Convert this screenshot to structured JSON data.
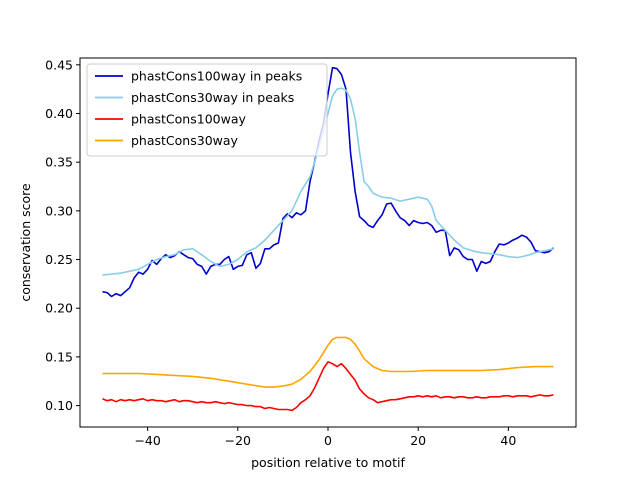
{
  "chart_data": {
    "type": "line",
    "title": "",
    "xlabel": "position relative to motif",
    "ylabel": "conservation score",
    "xlim": [
      -55,
      55
    ],
    "ylim": [
      0.078,
      0.457
    ],
    "xticks": [
      -40,
      -20,
      0,
      20,
      40
    ],
    "xtick_labels": [
      "−40",
      "−20",
      "0",
      "20",
      "40"
    ],
    "yticks": [
      0.1,
      0.15,
      0.2,
      0.25,
      0.3,
      0.35,
      0.4,
      0.45
    ],
    "ytick_labels": [
      "0.10",
      "0.15",
      "0.20",
      "0.25",
      "0.30",
      "0.35",
      "0.40",
      "0.45"
    ],
    "grid": false,
    "legend_position": "top-left",
    "series": [
      {
        "name": "phastCons100way in peaks",
        "color": "#0000cd",
        "x": [
          -50,
          -49,
          -48,
          -47,
          -46,
          -45,
          -44,
          -43,
          -42,
          -41,
          -40,
          -39,
          -38,
          -37,
          -36,
          -35,
          -34,
          -33,
          -32,
          -31,
          -30,
          -29,
          -28,
          -27,
          -26,
          -25,
          -24,
          -23,
          -22,
          -21,
          -20,
          -19,
          -18,
          -17,
          -16,
          -15,
          -14,
          -13,
          -12,
          -11,
          -10,
          -9,
          -8,
          -7,
          -6,
          -5,
          -4,
          -3,
          -2,
          -1,
          0,
          1,
          2,
          3,
          4,
          5,
          6,
          7,
          8,
          9,
          10,
          11,
          12,
          13,
          14,
          15,
          16,
          17,
          18,
          19,
          20,
          21,
          22,
          23,
          24,
          25,
          26,
          27,
          28,
          29,
          30,
          31,
          32,
          33,
          34,
          35,
          36,
          37,
          38,
          39,
          40,
          41,
          42,
          43,
          44,
          45,
          46,
          47,
          48,
          49,
          50
        ],
        "values": [
          0.217,
          0.216,
          0.212,
          0.215,
          0.213,
          0.217,
          0.221,
          0.231,
          0.237,
          0.235,
          0.24,
          0.249,
          0.245,
          0.251,
          0.255,
          0.252,
          0.254,
          0.258,
          0.255,
          0.252,
          0.251,
          0.245,
          0.243,
          0.235,
          0.243,
          0.245,
          0.245,
          0.25,
          0.253,
          0.24,
          0.243,
          0.244,
          0.255,
          0.257,
          0.241,
          0.246,
          0.261,
          0.261,
          0.265,
          0.267,
          0.292,
          0.297,
          0.293,
          0.298,
          0.296,
          0.3,
          0.33,
          0.35,
          0.372,
          0.39,
          0.42,
          0.447,
          0.446,
          0.44,
          0.425,
          0.36,
          0.32,
          0.294,
          0.29,
          0.285,
          0.283,
          0.29,
          0.296,
          0.307,
          0.308,
          0.3,
          0.293,
          0.29,
          0.285,
          0.29,
          0.288,
          0.287,
          0.288,
          0.285,
          0.278,
          0.28,
          0.28,
          0.254,
          0.262,
          0.26,
          0.253,
          0.25,
          0.25,
          0.238,
          0.248,
          0.246,
          0.248,
          0.258,
          0.266,
          0.265,
          0.267,
          0.27,
          0.272,
          0.275,
          0.273,
          0.268,
          0.259,
          0.258,
          0.257,
          0.258,
          0.262
        ]
      },
      {
        "name": "phastCons30way in peaks",
        "color": "#87ceeb",
        "x": [
          -50,
          -48,
          -46,
          -44,
          -42,
          -40,
          -38,
          -36,
          -34,
          -32,
          -30,
          -28,
          -26,
          -24,
          -22,
          -20,
          -18,
          -16,
          -14,
          -12,
          -10,
          -8,
          -6,
          -4,
          -2,
          0,
          1,
          2,
          3,
          4,
          5,
          6,
          7,
          8,
          9,
          10,
          12,
          14,
          16,
          18,
          20,
          22,
          23,
          24,
          26,
          28,
          30,
          32,
          34,
          36,
          38,
          40,
          42,
          44,
          46,
          48,
          50
        ],
        "values": [
          0.234,
          0.235,
          0.236,
          0.238,
          0.24,
          0.245,
          0.25,
          0.253,
          0.255,
          0.26,
          0.261,
          0.255,
          0.248,
          0.243,
          0.245,
          0.25,
          0.258,
          0.262,
          0.27,
          0.28,
          0.29,
          0.3,
          0.32,
          0.335,
          0.365,
          0.4,
          0.418,
          0.425,
          0.426,
          0.424,
          0.415,
          0.395,
          0.36,
          0.33,
          0.325,
          0.318,
          0.314,
          0.313,
          0.31,
          0.312,
          0.314,
          0.312,
          0.305,
          0.29,
          0.28,
          0.27,
          0.262,
          0.259,
          0.257,
          0.256,
          0.255,
          0.253,
          0.252,
          0.254,
          0.257,
          0.259,
          0.261
        ]
      },
      {
        "name": "phastCons100way",
        "color": "#ff0000",
        "x": [
          -50,
          -49,
          -48,
          -47,
          -46,
          -45,
          -44,
          -43,
          -42,
          -41,
          -40,
          -39,
          -38,
          -37,
          -36,
          -35,
          -34,
          -33,
          -32,
          -31,
          -30,
          -29,
          -28,
          -27,
          -26,
          -25,
          -24,
          -23,
          -22,
          -21,
          -20,
          -19,
          -18,
          -17,
          -16,
          -15,
          -14,
          -13,
          -12,
          -11,
          -10,
          -9,
          -8,
          -7,
          -6,
          -5,
          -4,
          -3,
          -2,
          -1,
          0,
          1,
          2,
          3,
          4,
          5,
          6,
          7,
          8,
          9,
          10,
          11,
          12,
          13,
          14,
          15,
          16,
          17,
          18,
          19,
          20,
          21,
          22,
          23,
          24,
          25,
          26,
          27,
          28,
          29,
          30,
          31,
          32,
          33,
          34,
          35,
          36,
          37,
          38,
          39,
          40,
          41,
          42,
          43,
          44,
          45,
          46,
          47,
          48,
          49,
          50
        ],
        "values": [
          0.107,
          0.105,
          0.106,
          0.104,
          0.106,
          0.105,
          0.106,
          0.105,
          0.106,
          0.107,
          0.105,
          0.106,
          0.105,
          0.105,
          0.104,
          0.105,
          0.106,
          0.104,
          0.105,
          0.105,
          0.104,
          0.103,
          0.104,
          0.103,
          0.103,
          0.104,
          0.103,
          0.102,
          0.103,
          0.102,
          0.101,
          0.101,
          0.1,
          0.1,
          0.099,
          0.099,
          0.097,
          0.098,
          0.097,
          0.096,
          0.096,
          0.096,
          0.095,
          0.098,
          0.103,
          0.106,
          0.11,
          0.118,
          0.128,
          0.138,
          0.145,
          0.143,
          0.14,
          0.143,
          0.138,
          0.132,
          0.126,
          0.117,
          0.112,
          0.108,
          0.106,
          0.103,
          0.104,
          0.105,
          0.106,
          0.106,
          0.107,
          0.108,
          0.109,
          0.109,
          0.11,
          0.109,
          0.11,
          0.109,
          0.11,
          0.108,
          0.109,
          0.109,
          0.108,
          0.109,
          0.109,
          0.108,
          0.108,
          0.109,
          0.108,
          0.108,
          0.109,
          0.109,
          0.109,
          0.11,
          0.11,
          0.109,
          0.11,
          0.11,
          0.11,
          0.109,
          0.11,
          0.111,
          0.11,
          0.11,
          0.111
        ]
      },
      {
        "name": "phastCons30way",
        "color": "#ffa500",
        "x": [
          -50,
          -46,
          -42,
          -38,
          -34,
          -30,
          -26,
          -22,
          -18,
          -14,
          -12,
          -10,
          -8,
          -6,
          -4,
          -2,
          0,
          1,
          2,
          3,
          4,
          5,
          6,
          7,
          8,
          10,
          12,
          14,
          18,
          22,
          26,
          30,
          34,
          38,
          42,
          46,
          50
        ],
        "values": [
          0.133,
          0.133,
          0.133,
          0.132,
          0.131,
          0.13,
          0.128,
          0.125,
          0.122,
          0.119,
          0.119,
          0.12,
          0.122,
          0.127,
          0.135,
          0.147,
          0.162,
          0.168,
          0.17,
          0.17,
          0.17,
          0.168,
          0.163,
          0.156,
          0.148,
          0.14,
          0.136,
          0.135,
          0.135,
          0.136,
          0.136,
          0.136,
          0.136,
          0.137,
          0.139,
          0.14,
          0.14
        ]
      }
    ]
  }
}
